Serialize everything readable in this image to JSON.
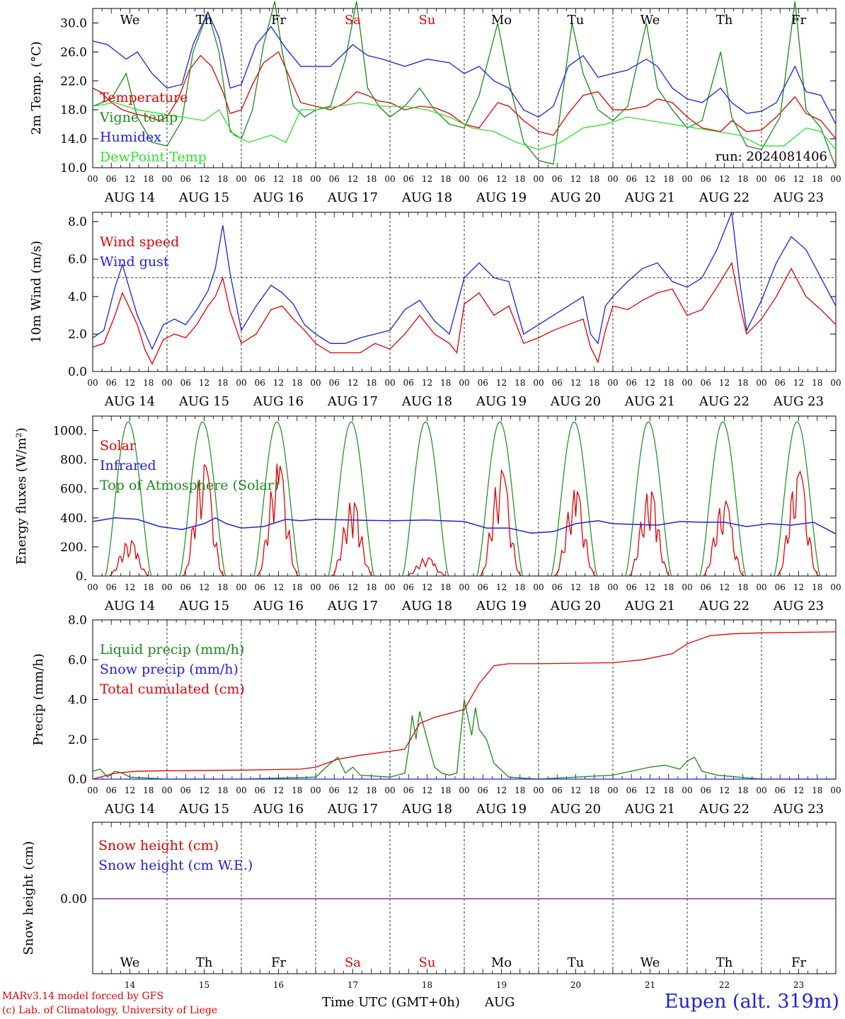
{
  "days": [
    "AUG 14",
    "AUG 15",
    "AUG 16",
    "AUG 17",
    "AUG 18",
    "AUG 19",
    "AUG 20",
    "AUG 21",
    "AUG 22",
    "AUG 23"
  ],
  "weekdays": [
    "We",
    "Th",
    "Fr",
    "Sa",
    "Su",
    "Mo",
    "Tu",
    "We",
    "Th",
    "Fr"
  ],
  "weekday_colors": [
    "#000000",
    "#000000",
    "#000000",
    "#e00000",
    "#e00000",
    "#000000",
    "#000000",
    "#000000",
    "#000000",
    "#000000"
  ],
  "day_numbers": [
    "14",
    "15",
    "16",
    "17",
    "18",
    "19",
    "20",
    "21",
    "22",
    "23"
  ],
  "hour_ticks": [
    "00",
    "06",
    "12",
    "18"
  ],
  "hour_end_label": "00",
  "x_title": "Time UTC (GMT+0h)",
  "x_month": "AUG",
  "credit_line1": "MARv3.14 model forced by GFS",
  "credit_line2": "(c) Lab. of Climatology, University of Liege",
  "station": "Eupen (alt. 319m)",
  "run_label": "run: 2024081406",
  "colors": {
    "red": "#e00000",
    "green": "#1a8a1a",
    "blue": "#2020e0",
    "lightgreen": "#30e030",
    "purple": "#7a3a9a"
  },
  "chart_data": [
    {
      "type": "line",
      "ylabel": "2m Temp. (°C)",
      "ylim": [
        10,
        32
      ],
      "yticks": [
        "10.0",
        "14.0",
        "18.0",
        "22.0",
        "26.0",
        "30.0"
      ],
      "x_unit": "days since AUG 14 00 UTC",
      "series": [
        {
          "name": "Temperature",
          "color": "red",
          "x": [
            0,
            0.1,
            0.25,
            0.4,
            0.55,
            0.75,
            0.9,
            1.0,
            1.15,
            1.3,
            1.45,
            1.6,
            1.75,
            1.85,
            2.0,
            2.15,
            2.3,
            2.5,
            2.65,
            2.8,
            3.0,
            3.2,
            3.4,
            3.55,
            3.7,
            3.85,
            4.0,
            4.2,
            4.4,
            4.6,
            4.8,
            5.0,
            5.2,
            5.45,
            5.6,
            5.8,
            6.0,
            6.2,
            6.4,
            6.6,
            6.8,
            7.0,
            7.2,
            7.45,
            7.6,
            7.8,
            8.0,
            8.2,
            8.45,
            8.6,
            8.8,
            9.0,
            9.2,
            9.45,
            9.6,
            9.8,
            10.0
          ],
          "y": [
            21.0,
            20.5,
            19.0,
            18.0,
            17.5,
            17.0,
            16.5,
            17.0,
            19.5,
            23.5,
            25.5,
            24.0,
            20.5,
            17.5,
            18.0,
            21.5,
            24.5,
            26.0,
            22.5,
            19.0,
            18.5,
            18.0,
            19.0,
            20.5,
            20.0,
            19.2,
            19.0,
            18.0,
            18.5,
            18.3,
            17.5,
            16.0,
            15.5,
            19.0,
            18.5,
            16.5,
            15.0,
            14.5,
            17.5,
            20.0,
            20.5,
            18.0,
            18.0,
            18.5,
            19.5,
            19.0,
            17.0,
            15.5,
            15.0,
            16.5,
            15.0,
            15.2,
            17.0,
            19.8,
            17.5,
            16.5,
            14.0
          ]
        },
        {
          "name": "Vigne temp",
          "color": "green",
          "x": [
            0,
            0.25,
            0.45,
            0.6,
            0.8,
            1.0,
            1.2,
            1.35,
            1.55,
            1.7,
            1.85,
            2.0,
            2.15,
            2.3,
            2.45,
            2.55,
            2.7,
            2.85,
            3.0,
            3.2,
            3.4,
            3.55,
            3.7,
            3.85,
            4.0,
            4.2,
            4.4,
            4.6,
            4.8,
            5.0,
            5.2,
            5.45,
            5.6,
            5.8,
            6.0,
            6.2,
            6.45,
            6.6,
            6.8,
            7.0,
            7.2,
            7.45,
            7.6,
            7.8,
            8.0,
            8.2,
            8.45,
            8.6,
            8.8,
            9.0,
            9.25,
            9.45,
            9.6,
            9.8,
            10.0
          ],
          "y": [
            18.5,
            19.5,
            23.0,
            17.0,
            13.5,
            13.0,
            16.5,
            26.0,
            31.5,
            26.0,
            15.0,
            14.0,
            18.0,
            27.0,
            33.0,
            26.0,
            18.5,
            17.0,
            18.0,
            18.5,
            25.0,
            33.0,
            21.0,
            18.5,
            17.0,
            18.5,
            21.0,
            18.0,
            16.0,
            15.5,
            20.0,
            30.0,
            22.0,
            13.5,
            11.0,
            10.5,
            30.0,
            23.0,
            18.0,
            16.5,
            18.5,
            30.0,
            21.0,
            18.0,
            15.5,
            16.5,
            26.0,
            17.0,
            13.0,
            12.5,
            17.0,
            33.0,
            18.0,
            15.5,
            10.0
          ]
        },
        {
          "name": "Humidex",
          "color": "blue",
          "x": [
            0,
            0.2,
            0.45,
            0.6,
            0.8,
            1.0,
            1.2,
            1.35,
            1.55,
            1.7,
            1.85,
            2.0,
            2.2,
            2.4,
            2.6,
            2.8,
            3.0,
            3.2,
            3.5,
            3.7,
            3.9,
            4.2,
            4.5,
            4.8,
            5.0,
            5.2,
            5.4,
            5.6,
            5.8,
            6.0,
            6.2,
            6.4,
            6.6,
            6.8,
            7.0,
            7.2,
            7.45,
            7.6,
            7.8,
            8.0,
            8.2,
            8.45,
            8.6,
            8.8,
            9.0,
            9.2,
            9.45,
            9.6,
            9.8,
            10.0
          ],
          "y": [
            27.5,
            27.0,
            25.0,
            26.0,
            23.0,
            21.0,
            21.5,
            27.0,
            31.5,
            28.0,
            21.0,
            21.5,
            27.0,
            29.5,
            26.5,
            24.0,
            24.0,
            24.0,
            27.0,
            25.5,
            25.0,
            24.0,
            25.0,
            24.5,
            23.0,
            24.0,
            22.0,
            21.0,
            18.0,
            17.0,
            18.5,
            24.0,
            25.5,
            22.5,
            23.0,
            23.5,
            25.0,
            24.0,
            21.0,
            19.5,
            19.0,
            21.0,
            19.0,
            17.5,
            17.8,
            19.0,
            24.0,
            20.5,
            20.0,
            16.0
          ]
        },
        {
          "name": "DewPoint Temp",
          "color": "lightgreen",
          "x": [
            0,
            0.3,
            0.6,
            0.9,
            1.2,
            1.5,
            1.7,
            1.9,
            2.1,
            2.4,
            2.6,
            2.8,
            3.0,
            3.3,
            3.6,
            3.9,
            4.2,
            4.5,
            4.8,
            5.1,
            5.4,
            5.7,
            6.0,
            6.3,
            6.6,
            6.9,
            7.2,
            7.5,
            7.8,
            8.1,
            8.4,
            8.7,
            9.0,
            9.3,
            9.6,
            9.8,
            10.0
          ],
          "y": [
            18.5,
            19.0,
            18.0,
            17.5,
            17.0,
            16.5,
            18.0,
            14.5,
            13.5,
            14.5,
            13.5,
            18.0,
            18.0,
            18.5,
            19.0,
            18.5,
            18.5,
            18.0,
            17.0,
            15.5,
            15.0,
            13.5,
            12.5,
            13.5,
            15.5,
            16.0,
            17.0,
            16.5,
            16.0,
            15.5,
            15.0,
            14.5,
            13.0,
            13.0,
            15.5,
            15.0,
            12.5
          ]
        }
      ]
    },
    {
      "type": "line",
      "ylabel": "10m Wind (m/s)",
      "ylim": [
        0,
        8.5
      ],
      "yticks": [
        "0.0",
        "2.0",
        "4.0",
        "6.0",
        "8.0"
      ],
      "reference_line": 5.0,
      "series": [
        {
          "name": "Wind speed",
          "color": "red",
          "x": [
            0,
            0.15,
            0.3,
            0.4,
            0.6,
            0.7,
            0.8,
            0.95,
            1.1,
            1.25,
            1.4,
            1.55,
            1.65,
            1.75,
            1.85,
            2.0,
            2.2,
            2.4,
            2.55,
            2.7,
            2.85,
            3.0,
            3.2,
            3.4,
            3.6,
            3.8,
            4.0,
            4.2,
            4.4,
            4.6,
            4.8,
            4.9,
            5.0,
            5.2,
            5.4,
            5.6,
            5.8,
            6.0,
            6.2,
            6.4,
            6.6,
            6.7,
            6.8,
            6.9,
            7.0,
            7.2,
            7.4,
            7.6,
            7.8,
            8.0,
            8.2,
            8.4,
            8.6,
            8.7,
            8.8,
            9.0,
            9.2,
            9.4,
            9.6,
            9.8,
            10.0
          ],
          "y": [
            1.3,
            1.5,
            3.0,
            4.2,
            2.5,
            1.2,
            0.4,
            1.7,
            2.0,
            1.8,
            2.5,
            3.5,
            4.0,
            5.0,
            3.2,
            1.5,
            2.0,
            3.3,
            3.5,
            2.8,
            2.2,
            1.5,
            1.0,
            1.0,
            1.0,
            1.5,
            1.2,
            2.0,
            3.0,
            2.0,
            1.5,
            1.0,
            3.6,
            4.2,
            3.0,
            3.5,
            1.5,
            1.8,
            2.2,
            2.5,
            2.8,
            1.3,
            0.5,
            2.2,
            3.5,
            3.3,
            3.8,
            4.2,
            4.4,
            3.0,
            3.3,
            4.5,
            5.8,
            3.7,
            2.0,
            2.8,
            4.0,
            5.5,
            4.0,
            3.3,
            2.5
          ]
        },
        {
          "name": "Wind gust",
          "color": "blue",
          "x": [
            0,
            0.15,
            0.3,
            0.4,
            0.6,
            0.8,
            0.95,
            1.1,
            1.25,
            1.4,
            1.55,
            1.65,
            1.75,
            1.85,
            2.0,
            2.2,
            2.4,
            2.55,
            2.7,
            2.85,
            3.0,
            3.2,
            3.4,
            3.6,
            3.8,
            4.0,
            4.2,
            4.4,
            4.6,
            4.8,
            5.0,
            5.2,
            5.4,
            5.6,
            5.8,
            6.0,
            6.2,
            6.4,
            6.6,
            6.7,
            6.8,
            6.9,
            7.0,
            7.2,
            7.4,
            7.6,
            7.8,
            8.0,
            8.2,
            8.4,
            8.6,
            8.7,
            8.8,
            9.0,
            9.2,
            9.4,
            9.6,
            9.8,
            10.0
          ],
          "y": [
            1.8,
            2.2,
            4.5,
            5.7,
            3.0,
            1.2,
            2.5,
            2.8,
            2.5,
            3.3,
            4.3,
            5.5,
            7.8,
            5.2,
            2.2,
            3.5,
            4.6,
            4.2,
            3.6,
            2.5,
            2.0,
            1.5,
            1.5,
            1.8,
            2.0,
            2.2,
            3.3,
            3.8,
            2.7,
            2.0,
            5.0,
            5.8,
            5.0,
            4.8,
            2.0,
            2.5,
            3.0,
            3.5,
            4.0,
            2.0,
            1.5,
            3.5,
            4.0,
            4.8,
            5.5,
            5.8,
            4.8,
            4.5,
            5.0,
            6.5,
            8.5,
            5.0,
            2.2,
            3.8,
            5.8,
            7.2,
            6.5,
            5.0,
            3.5
          ]
        }
      ]
    },
    {
      "type": "line",
      "ylabel": "Energy fluxes (W/m²)",
      "ylim": [
        0,
        1100
      ],
      "yticks": [
        "0.",
        "200.",
        "400.",
        "600.",
        "800.",
        "1000."
      ],
      "solar_peaks": [
        250,
        780,
        780,
        520,
        130,
        730,
        600,
        600,
        530,
        740
      ],
      "series": [
        {
          "name": "Solar",
          "color": "red"
        },
        {
          "name": "Infrared",
          "color": "blue",
          "x": [
            0,
            0.3,
            0.6,
            0.9,
            1.2,
            1.5,
            1.65,
            1.8,
            2.0,
            2.3,
            2.6,
            2.8,
            3.0,
            3.5,
            4.0,
            4.5,
            5.0,
            5.3,
            5.6,
            5.9,
            6.2,
            6.5,
            6.8,
            7.0,
            7.3,
            7.6,
            7.9,
            8.2,
            8.5,
            8.8,
            9.1,
            9.4,
            9.7,
            10.0
          ],
          "y": [
            375,
            400,
            390,
            340,
            320,
            360,
            400,
            360,
            330,
            340,
            390,
            380,
            390,
            385,
            380,
            385,
            375,
            330,
            330,
            295,
            305,
            360,
            380,
            360,
            355,
            350,
            375,
            370,
            370,
            340,
            360,
            350,
            370,
            290
          ]
        },
        {
          "name": "Top of Atmosphere (Solar)",
          "color": "green",
          "peak": 1060
        }
      ]
    },
    {
      "type": "line",
      "ylabel": "Precip (mm/h)",
      "ylim": [
        0,
        8
      ],
      "yticks": [
        "0.0",
        "2.0",
        "4.0",
        "6.0",
        "8.0"
      ],
      "series": [
        {
          "name": "Liquid precip (mm/h)",
          "color": "green",
          "x": [
            0,
            0.1,
            0.2,
            0.3,
            0.4,
            0.5,
            1.0,
            2.0,
            3.0,
            3.2,
            3.3,
            3.4,
            3.5,
            3.6,
            4.0,
            4.2,
            4.25,
            4.3,
            4.35,
            4.4,
            4.5,
            4.6,
            4.7,
            4.8,
            4.9,
            5.0,
            5.1,
            5.15,
            5.2,
            5.3,
            5.4,
            5.6,
            6.0,
            7.0,
            7.5,
            7.7,
            7.9,
            8.0,
            8.1,
            8.2,
            8.4,
            9.0,
            10.0
          ],
          "y": [
            0.4,
            0.5,
            0.1,
            0.4,
            0.3,
            0.1,
            0.0,
            0.0,
            0.1,
            0.8,
            1.1,
            0.3,
            0.6,
            0.2,
            0.1,
            0.3,
            1.5,
            3.2,
            2.0,
            3.4,
            2.0,
            0.6,
            0.3,
            0.2,
            0.3,
            4.0,
            2.2,
            3.6,
            2.5,
            2.0,
            0.8,
            0.1,
            0.0,
            0.2,
            0.6,
            0.7,
            0.5,
            0.9,
            1.1,
            0.4,
            0.2,
            0.0,
            0.0
          ]
        },
        {
          "name": "Snow precip (mm/h)",
          "color": "blue",
          "x": [
            0,
            10
          ],
          "y": [
            0,
            0
          ]
        },
        {
          "name": "Total cumulated (cm)",
          "color": "red",
          "x": [
            0,
            0.3,
            0.6,
            1.0,
            2.0,
            2.8,
            3.0,
            3.3,
            3.6,
            4.0,
            4.2,
            4.4,
            4.6,
            5.0,
            5.2,
            5.4,
            5.6,
            6.0,
            7.0,
            7.4,
            7.8,
            8.0,
            8.3,
            8.6,
            9.0,
            10.0
          ],
          "y": [
            0.0,
            0.3,
            0.4,
            0.42,
            0.45,
            0.5,
            0.6,
            1.0,
            1.2,
            1.4,
            1.5,
            2.8,
            3.1,
            3.5,
            4.8,
            5.7,
            5.8,
            5.8,
            5.85,
            6.0,
            6.3,
            6.8,
            7.2,
            7.3,
            7.35,
            7.4
          ]
        }
      ]
    },
    {
      "type": "line",
      "ylabel": "Snow height (cm)",
      "yticks": [
        "0.00"
      ],
      "series": [
        {
          "name": "Snow height (cm)",
          "color": "red",
          "x": [
            0,
            10
          ],
          "y": [
            0,
            0
          ]
        },
        {
          "name": "Snow height (cm W.E.)",
          "color": "blue",
          "x": [
            0,
            10
          ],
          "y": [
            0,
            0
          ]
        }
      ]
    }
  ]
}
